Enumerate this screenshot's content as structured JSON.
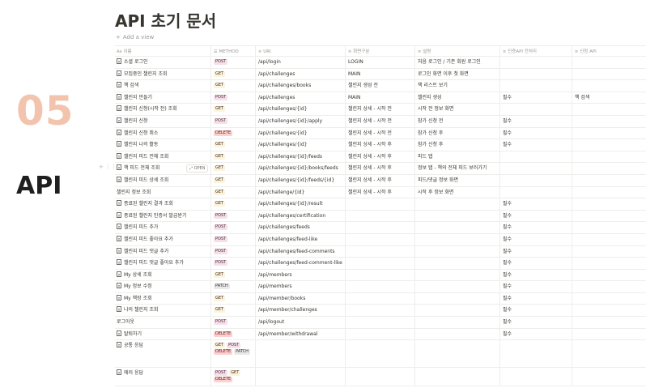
{
  "side": {
    "number": "05",
    "label": "API"
  },
  "page": {
    "title": "API 초기 문서",
    "add_view": "Add a view"
  },
  "columns": [
    "이름",
    "METHOD",
    "URI",
    "화면구분",
    "설명",
    "인증API 전처리",
    "신청 API"
  ],
  "open_label": "OPEN",
  "rows": [
    {
      "name": "소셜 로그인",
      "doc": true,
      "methods": [
        "POST"
      ],
      "uri": "/api/login",
      "screen": "LOGIN",
      "desc": "처음 로그인 / 기존 회원 로그인",
      "auth": "",
      "apply": ""
    },
    {
      "name": "모집중인 챌린지 조회",
      "doc": true,
      "methods": [
        "GET"
      ],
      "uri": "/api/challenges",
      "screen": "MAIN",
      "desc": "로그인 화면 이후 첫 화면",
      "auth": "",
      "apply": ""
    },
    {
      "name": "책 검색",
      "doc": true,
      "methods": [
        "GET"
      ],
      "uri": "/api/challenges/books",
      "screen": "챌린지 생성 전",
      "desc": "책 리스트 보기",
      "auth": "",
      "apply": ""
    },
    {
      "name": "챌린지 만들기",
      "doc": true,
      "methods": [
        "POST"
      ],
      "uri": "/api/challenges",
      "screen": "MAIN",
      "desc": "챌린지 생성",
      "auth": "필수",
      "apply": "책 검색"
    },
    {
      "name": "챌린지 신청(시작 전) 조회",
      "doc": true,
      "methods": [
        "GET"
      ],
      "uri": "/api/challenges/{id}",
      "screen": "챌린지 상세 - 시작 전",
      "desc": "시작 전 정보 화면",
      "auth": "",
      "apply": ""
    },
    {
      "name": "챌린지 신청",
      "doc": true,
      "methods": [
        "POST"
      ],
      "uri": "/api/challenges/{id}/apply",
      "screen": "챌린지 상세 - 시작 전",
      "desc": "참가 신청 전",
      "auth": "필수",
      "apply": ""
    },
    {
      "name": "챌린지 신청 취소",
      "doc": true,
      "methods": [
        "DELETE"
      ],
      "uri": "/api/challenges/{id}",
      "screen": "챌린지 상세 - 시작 전",
      "desc": "참가 신청 후",
      "auth": "필수",
      "apply": ""
    },
    {
      "name": "챌린지 나의 활동",
      "doc": true,
      "methods": [
        "GET"
      ],
      "uri": "/api/challenges/{id}",
      "screen": "챌린지 상세 - 시작 후",
      "desc": "참가 신청 후",
      "auth": "필수",
      "apply": ""
    },
    {
      "name": "챌린지 피드 전체 조회",
      "doc": true,
      "methods": [
        "GET"
      ],
      "uri": "/api/challenges/{id}/feeds",
      "screen": "챌린지 상세 - 시작 후",
      "desc": "피드 탭",
      "auth": "",
      "apply": ""
    },
    {
      "name": "책 피드 전체 조회",
      "doc": true,
      "open": true,
      "methods": [
        "GET"
      ],
      "uri": "/api/challenges/{id}/books/feeds",
      "screen": "챌린지 상세 - 시작 후",
      "desc": "정보 탭 - 책의 전체 피드 보러가기",
      "auth": "",
      "apply": ""
    },
    {
      "name": "챌린지 피드 상세 조회",
      "doc": true,
      "methods": [
        "GET"
      ],
      "uri": "/api/challenges/{id}/feeds/{id}",
      "screen": "챌린지 상세 - 시작 후",
      "desc": "피드/댓글 정보 화면",
      "auth": "",
      "apply": ""
    },
    {
      "name": "챌린지 정보 조회",
      "doc": false,
      "methods": [
        "GET"
      ],
      "uri": "/api/challenge/{id}",
      "screen": "챌린지 상세 - 시작 후",
      "desc": "시작 후 정보 화면",
      "auth": "",
      "apply": ""
    },
    {
      "name": "종료된 챌린지 결과 조회",
      "doc": true,
      "methods": [
        "GET"
      ],
      "uri": "/api/challenges/{id}/result",
      "screen": "",
      "desc": "",
      "auth": "필수",
      "apply": ""
    },
    {
      "name": "종료된 챌린지 인증서 발급받기",
      "doc": true,
      "methods": [
        "POST"
      ],
      "uri": "/api/challenges/certification",
      "screen": "",
      "desc": "",
      "auth": "필수",
      "apply": ""
    },
    {
      "name": "챌린지 피드 추가",
      "doc": true,
      "methods": [
        "POST"
      ],
      "uri": "/api/challenges/feeds",
      "screen": "",
      "desc": "",
      "auth": "필수",
      "apply": ""
    },
    {
      "name": "챌린지 피드 좋아요 추가",
      "doc": true,
      "methods": [
        "POST"
      ],
      "uri": "/api/challenges/feed-like",
      "screen": "",
      "desc": "",
      "auth": "필수",
      "apply": ""
    },
    {
      "name": "챌린지 피드 댓글 추가",
      "doc": true,
      "methods": [
        "POST"
      ],
      "uri": "/api/challenges/feed-comments",
      "screen": "",
      "desc": "",
      "auth": "필수",
      "apply": ""
    },
    {
      "name": "챌린지 피드 댓글 좋아요 추가",
      "doc": true,
      "methods": [
        "POST"
      ],
      "uri": "/api/challenges/feed-comment-like",
      "screen": "",
      "desc": "",
      "auth": "필수",
      "apply": ""
    },
    {
      "name": "My 상세 조회",
      "doc": true,
      "methods": [
        "GET"
      ],
      "uri": "/api/members",
      "screen": "",
      "desc": "",
      "auth": "필수",
      "apply": ""
    },
    {
      "name": "My 정보 수정",
      "doc": true,
      "methods": [
        "PATCH"
      ],
      "uri": "/api/members",
      "screen": "",
      "desc": "",
      "auth": "필수",
      "apply": ""
    },
    {
      "name": "My 책장 조회",
      "doc": true,
      "methods": [
        "GET"
      ],
      "uri": "/api/member/books",
      "screen": "",
      "desc": "",
      "auth": "필수",
      "apply": ""
    },
    {
      "name": "나의 챌린지 조회",
      "doc": true,
      "methods": [
        "GET"
      ],
      "uri": "/api/member/challenges",
      "screen": "",
      "desc": "",
      "auth": "필수",
      "apply": ""
    },
    {
      "name": "로그아웃",
      "doc": false,
      "methods": [
        "POST"
      ],
      "uri": "/api/logout",
      "screen": "",
      "desc": "",
      "auth": "필수",
      "apply": ""
    },
    {
      "name": "탈퇴하기",
      "doc": true,
      "methods": [
        "DELETE"
      ],
      "uri": "/api/member/withdrawal",
      "screen": "",
      "desc": "",
      "auth": "필수",
      "apply": ""
    },
    {
      "name": "공통 응답",
      "doc": true,
      "size": "tall",
      "methods": [
        "GET",
        "POST",
        "DELETE",
        "PATCH"
      ],
      "uri": "",
      "screen": "",
      "desc": "",
      "auth": "",
      "apply": ""
    },
    {
      "name": "에러 응답",
      "doc": true,
      "size": "mid",
      "methods": [
        "POST",
        "GET",
        "DELETE"
      ],
      "uri": "",
      "screen": "",
      "desc": "",
      "auth": "",
      "apply": ""
    }
  ]
}
